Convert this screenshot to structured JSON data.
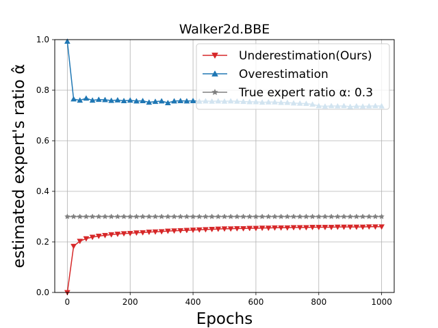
{
  "chart_data": {
    "type": "line",
    "title": "Walker2d.BBE",
    "xlabel": "Epochs",
    "ylabel": "estimated expert's ratio α̂",
    "xlim": [
      -40,
      1040
    ],
    "ylim": [
      0.0,
      1.0
    ],
    "xticks": [
      0,
      200,
      400,
      600,
      800,
      1000
    ],
    "yticks": [
      0.0,
      0.2,
      0.4,
      0.6,
      0.8,
      1.0
    ],
    "xtick_labels": [
      "0",
      "200",
      "400",
      "600",
      "800",
      "1000"
    ],
    "ytick_labels": [
      "0.0",
      "0.2",
      "0.4",
      "0.6",
      "0.8",
      "1.0"
    ],
    "grid": true,
    "legend_position": "top-right",
    "x": [
      0,
      20,
      40,
      60,
      80,
      100,
      120,
      140,
      160,
      180,
      200,
      220,
      240,
      260,
      280,
      300,
      320,
      340,
      360,
      380,
      400,
      420,
      440,
      460,
      480,
      500,
      520,
      540,
      560,
      580,
      600,
      620,
      640,
      660,
      680,
      700,
      720,
      740,
      760,
      780,
      800,
      820,
      840,
      860,
      880,
      900,
      920,
      940,
      960,
      980,
      1000
    ],
    "series": [
      {
        "name": "Underestimation(Ours)",
        "color": "#d62728",
        "marker": "triangle-down",
        "values": [
          0.0,
          0.183,
          0.203,
          0.213,
          0.219,
          0.223,
          0.226,
          0.229,
          0.231,
          0.233,
          0.234,
          0.236,
          0.237,
          0.239,
          0.24,
          0.241,
          0.243,
          0.244,
          0.245,
          0.246,
          0.247,
          0.248,
          0.249,
          0.25,
          0.251,
          0.252,
          0.252,
          0.253,
          0.253,
          0.254,
          0.254,
          0.255,
          0.255,
          0.256,
          0.256,
          0.256,
          0.257,
          0.257,
          0.257,
          0.258,
          0.258,
          0.258,
          0.258,
          0.259,
          0.259,
          0.259,
          0.259,
          0.259,
          0.26,
          0.26,
          0.26
        ]
      },
      {
        "name": "Overestimation",
        "color": "#1f77b4",
        "marker": "triangle-up",
        "values": [
          0.993,
          0.765,
          0.76,
          0.768,
          0.76,
          0.763,
          0.762,
          0.759,
          0.761,
          0.758,
          0.76,
          0.757,
          0.758,
          0.752,
          0.755,
          0.757,
          0.75,
          0.757,
          0.758,
          0.757,
          0.758,
          0.756,
          0.757,
          0.756,
          0.757,
          0.756,
          0.757,
          0.756,
          0.755,
          0.754,
          0.754,
          0.752,
          0.753,
          0.753,
          0.751,
          0.751,
          0.749,
          0.748,
          0.747,
          0.744,
          0.738,
          0.736,
          0.738,
          0.737,
          0.738,
          0.735,
          0.737,
          0.736,
          0.737,
          0.738,
          0.737
        ]
      },
      {
        "name": "True expert ratio α: 0.3",
        "color": "#7f7f7f",
        "marker": "star",
        "values": [
          0.3,
          0.3,
          0.3,
          0.3,
          0.3,
          0.3,
          0.3,
          0.3,
          0.3,
          0.3,
          0.3,
          0.3,
          0.3,
          0.3,
          0.3,
          0.3,
          0.3,
          0.3,
          0.3,
          0.3,
          0.3,
          0.3,
          0.3,
          0.3,
          0.3,
          0.3,
          0.3,
          0.3,
          0.3,
          0.3,
          0.3,
          0.3,
          0.3,
          0.3,
          0.3,
          0.3,
          0.3,
          0.3,
          0.3,
          0.3,
          0.3,
          0.3,
          0.3,
          0.3,
          0.3,
          0.3,
          0.3,
          0.3,
          0.3,
          0.3,
          0.3
        ]
      }
    ]
  }
}
